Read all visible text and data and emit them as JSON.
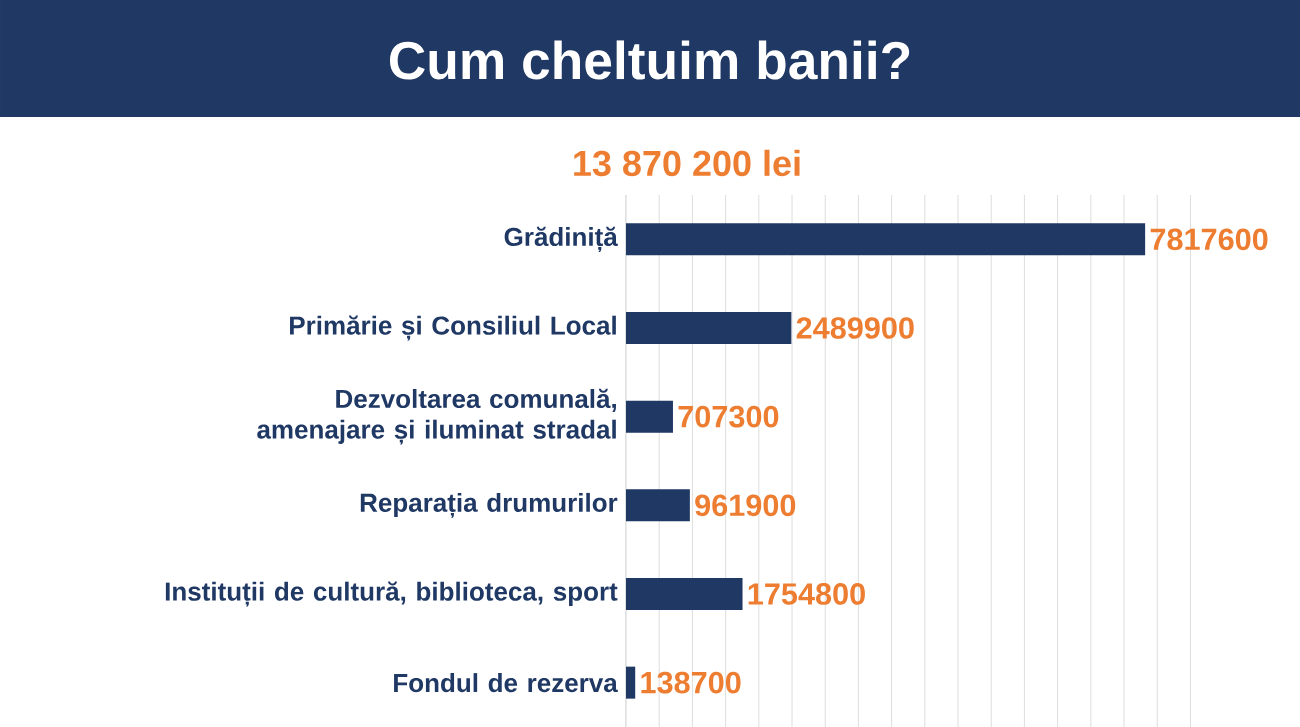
{
  "chart_data": {
    "type": "bar",
    "orientation": "horizontal",
    "title": "Cum cheltuim banii?",
    "subtitle": "13 870 200 lei",
    "categories": [
      "Grădiniță",
      "Primărie și Consiliul Local",
      "Dezvoltarea comunală, amenajare și iluminat stradal",
      "Reparația drumurilor",
      "Instituții de cultură, biblioteca, sport",
      "Fondul de rezerva"
    ],
    "values": [
      7817600,
      2489900,
      707300,
      961900,
      1754800,
      138700
    ],
    "color": "#203864",
    "data_labels": true,
    "grid": "x",
    "tick_labels": "y"
  }
}
